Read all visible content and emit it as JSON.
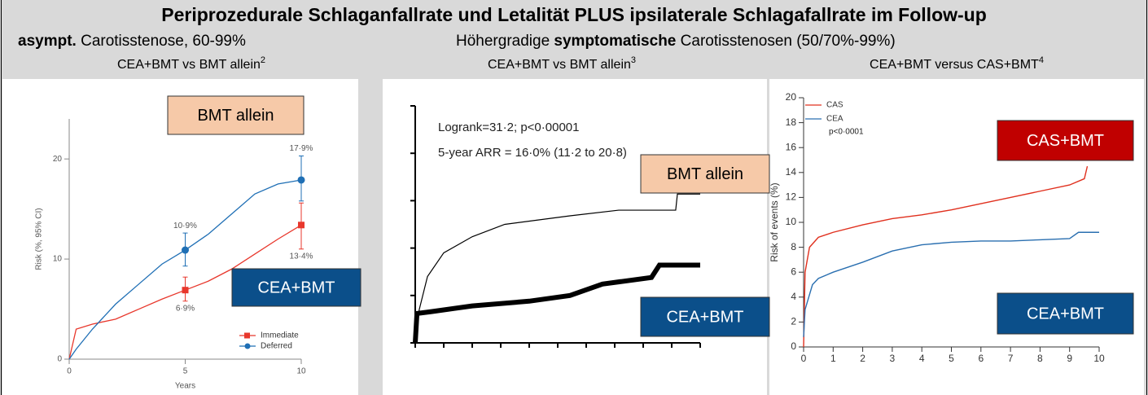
{
  "header": {
    "title": "Periprozedurale Schlaganfallrate und Letalität PLUS ipsilaterale Schlagafallrate im Follow-up",
    "left_subtitle": [
      "asympt.",
      " Carotisstenose, 60-99%"
    ],
    "right_subtitle": [
      "Höhergradige ",
      "symptomatische",
      " Carotisstenosen (50/70%-99%)"
    ]
  },
  "chart_data": [
    {
      "type": "line",
      "title": "CEA+BMT vs BMT allein",
      "title_ref": "2",
      "xlabel": "Years",
      "ylabel": "Risk (%, 95% CI)",
      "xlim": [
        0,
        10
      ],
      "xticks": [
        0,
        5,
        10
      ],
      "ylim": [
        0,
        24
      ],
      "yticks": [
        0,
        10,
        20
      ],
      "legend": "lower right",
      "series": [
        {
          "name": "Immediate",
          "color": "#e8372c",
          "x": [
            0,
            0.3,
            1,
            2,
            3,
            4,
            5,
            6,
            7,
            8,
            9,
            10
          ],
          "values": [
            0,
            3,
            3.5,
            4,
            5,
            6,
            6.9,
            7.8,
            9,
            10.5,
            12,
            13.4
          ],
          "points": {
            "x": [
              5,
              10
            ],
            "values": [
              6.9,
              13.4
            ],
            "lower": [
              5.8,
              11
            ],
            "upper": [
              8.2,
              15.6
            ],
            "value_labels": [
              "6·9%",
              "13·4%"
            ]
          }
        },
        {
          "name": "Deferred",
          "color": "#1f6fb5",
          "x": [
            0,
            0.3,
            1,
            2,
            3,
            4,
            5,
            6,
            7,
            8,
            9,
            10
          ],
          "values": [
            0,
            1,
            3,
            5.5,
            7.5,
            9.5,
            10.9,
            12.5,
            14.5,
            16.5,
            17.5,
            17.9
          ],
          "points": {
            "x": [
              5,
              10
            ],
            "values": [
              10.9,
              17.9
            ],
            "lower": [
              9.3,
              15.8
            ],
            "upper": [
              12.6,
              20.3
            ],
            "value_labels": [
              "10·9%",
              "17·9%"
            ]
          }
        }
      ],
      "boxes": [
        {
          "text": "BMT allein",
          "color": "#f6c9a8",
          "text_color": "#000000"
        },
        {
          "text": "CEA+BMT",
          "color": "#0b4f8a",
          "text_color": "#ffffff"
        }
      ]
    },
    {
      "type": "line",
      "title": "CEA+BMT vs BMT allein",
      "title_ref": "3",
      "xlim": [
        0,
        10
      ],
      "xticks": [
        0,
        1,
        2,
        3,
        4,
        5,
        6,
        7,
        8,
        9,
        10
      ],
      "ylim": [
        0,
        25
      ],
      "yticks": [
        0,
        5,
        10,
        15,
        20,
        25
      ],
      "annotations": [
        "Logrank=31·2; p<0·00001",
        "5-year ARR = 16·0% (11·2 to 20·8)"
      ],
      "series": [
        {
          "color": "#000000",
          "x": [
            0,
            0.14,
            0.43,
            1,
            2,
            3.14,
            5.43,
            7.14,
            9.14,
            9.2,
            10
          ],
          "values": [
            0,
            3.5,
            7,
            9.5,
            11.2,
            12.5,
            13.4,
            14,
            14,
            15.7,
            15.7
          ]
        },
        {
          "color": "#000000",
          "x": [
            0,
            0.06,
            0.57,
            2,
            4,
            5.43,
            6.57,
            8.29,
            8.57,
            10
          ],
          "values": [
            0,
            3.1,
            3.3,
            3.9,
            4.4,
            5,
            6.2,
            6.9,
            8.2,
            8.2
          ]
        }
      ],
      "boxes": [
        {
          "text": "BMT allein",
          "color": "#f6c9a8",
          "text_color": "#000000"
        },
        {
          "text": "CEA+BMT",
          "color": "#0b4f8a",
          "text_color": "#ffffff"
        }
      ]
    },
    {
      "type": "line",
      "title": "CEA+BMT versus CAS+BMT",
      "title_ref": "4",
      "ylabel": "Risk of events (%)",
      "xlim": [
        0,
        10
      ],
      "xticks": [
        0,
        1,
        2,
        3,
        4,
        5,
        6,
        7,
        8,
        9,
        10
      ],
      "ylim": [
        0,
        20
      ],
      "yticks": [
        0,
        2,
        4,
        6,
        8,
        10,
        12,
        14,
        16,
        18,
        20
      ],
      "legend": "upper left",
      "annotations": [
        "p<0·0001"
      ],
      "series": [
        {
          "name": "CAS",
          "color": "#e0301e",
          "x": [
            0,
            0.05,
            0.2,
            0.5,
            1,
            2,
            3,
            4,
            5,
            6,
            7,
            8,
            9,
            9.5,
            9.6
          ],
          "values": [
            0,
            6,
            8,
            8.8,
            9.2,
            9.8,
            10.3,
            10.6,
            11,
            11.5,
            12,
            12.5,
            13,
            13.5,
            14.5
          ]
        },
        {
          "name": "CEA",
          "color": "#2a6fb0",
          "x": [
            0,
            0.05,
            0.3,
            0.5,
            1,
            2,
            3,
            4,
            5,
            6,
            7,
            8,
            9,
            9.3,
            10
          ],
          "values": [
            0.8,
            3,
            5,
            5.5,
            6,
            6.8,
            7.7,
            8.2,
            8.4,
            8.5,
            8.5,
            8.6,
            8.7,
            9.2,
            9.2
          ]
        }
      ],
      "boxes": [
        {
          "text": "CAS+BMT",
          "color": "#c00000",
          "text_color": "#ffffff"
        },
        {
          "text": "CEA+BMT",
          "color": "#0b4f8a",
          "text_color": "#ffffff"
        }
      ]
    }
  ]
}
